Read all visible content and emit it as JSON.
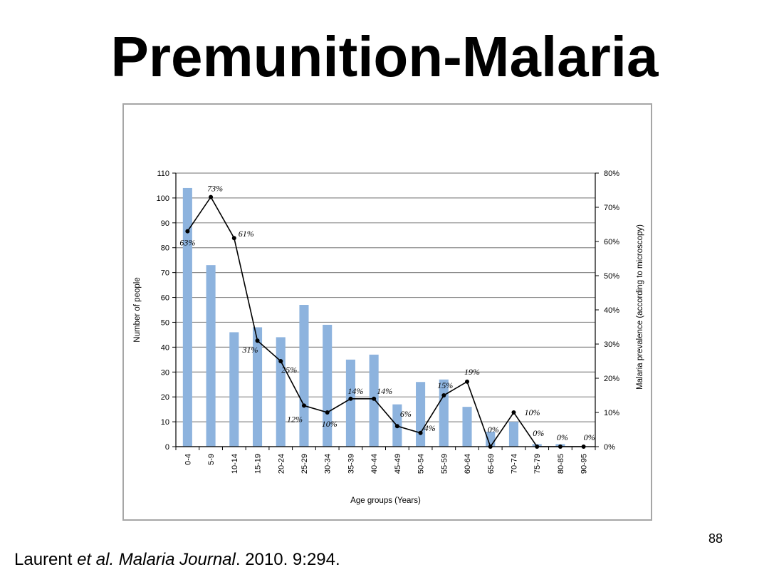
{
  "slide": {
    "title": "Premunition-Malaria",
    "page_number": "88",
    "citation": {
      "author": "Laurent ",
      "etal": "et al.",
      "journal": "Malaria Journal",
      "rest": ". 2010. 9:294."
    }
  },
  "chart_data": {
    "type": "bar",
    "title": "",
    "xlabel": "Age groups (Years)",
    "ylabel": "Number of people",
    "y2label": "Malaria prevalence (according to microscopy)",
    "ylim": [
      0,
      110
    ],
    "yticks": [
      0,
      10,
      20,
      30,
      40,
      50,
      60,
      70,
      80,
      90,
      100,
      110
    ],
    "y2lim": [
      0,
      80
    ],
    "y2ticks": [
      "0%",
      "10%",
      "20%",
      "30%",
      "40%",
      "50%",
      "60%",
      "70%",
      "80%"
    ],
    "grid": true,
    "categories": [
      "0-4",
      "5-9",
      "10-14",
      "15-19",
      "20-24",
      "25-29",
      "30-34",
      "35-39",
      "40-44",
      "45-49",
      "50-54",
      "55-59",
      "60-64",
      "65-69",
      "70-74",
      "75-79",
      "80-85",
      "90-95"
    ],
    "series": [
      {
        "type": "bar",
        "axis": "left",
        "color": "#8db3de",
        "values": [
          104,
          73,
          46,
          48,
          44,
          57,
          49,
          35,
          37,
          17,
          26,
          27,
          16,
          6,
          10,
          1,
          1,
          0
        ]
      },
      {
        "type": "line",
        "axis": "right",
        "color": "#000000",
        "values": [
          63,
          73,
          61,
          31,
          25,
          12,
          10,
          14,
          14,
          6,
          4,
          15,
          19,
          0,
          10,
          0,
          0,
          0
        ],
        "labels": [
          "63%",
          "73%",
          "61%",
          "31%",
          "25%",
          "12%",
          "10%",
          "14%",
          "14%",
          "6%",
          "4%",
          "15%",
          "19%",
          "0%",
          "10%",
          "0%",
          "0%",
          "0%"
        ]
      }
    ]
  }
}
